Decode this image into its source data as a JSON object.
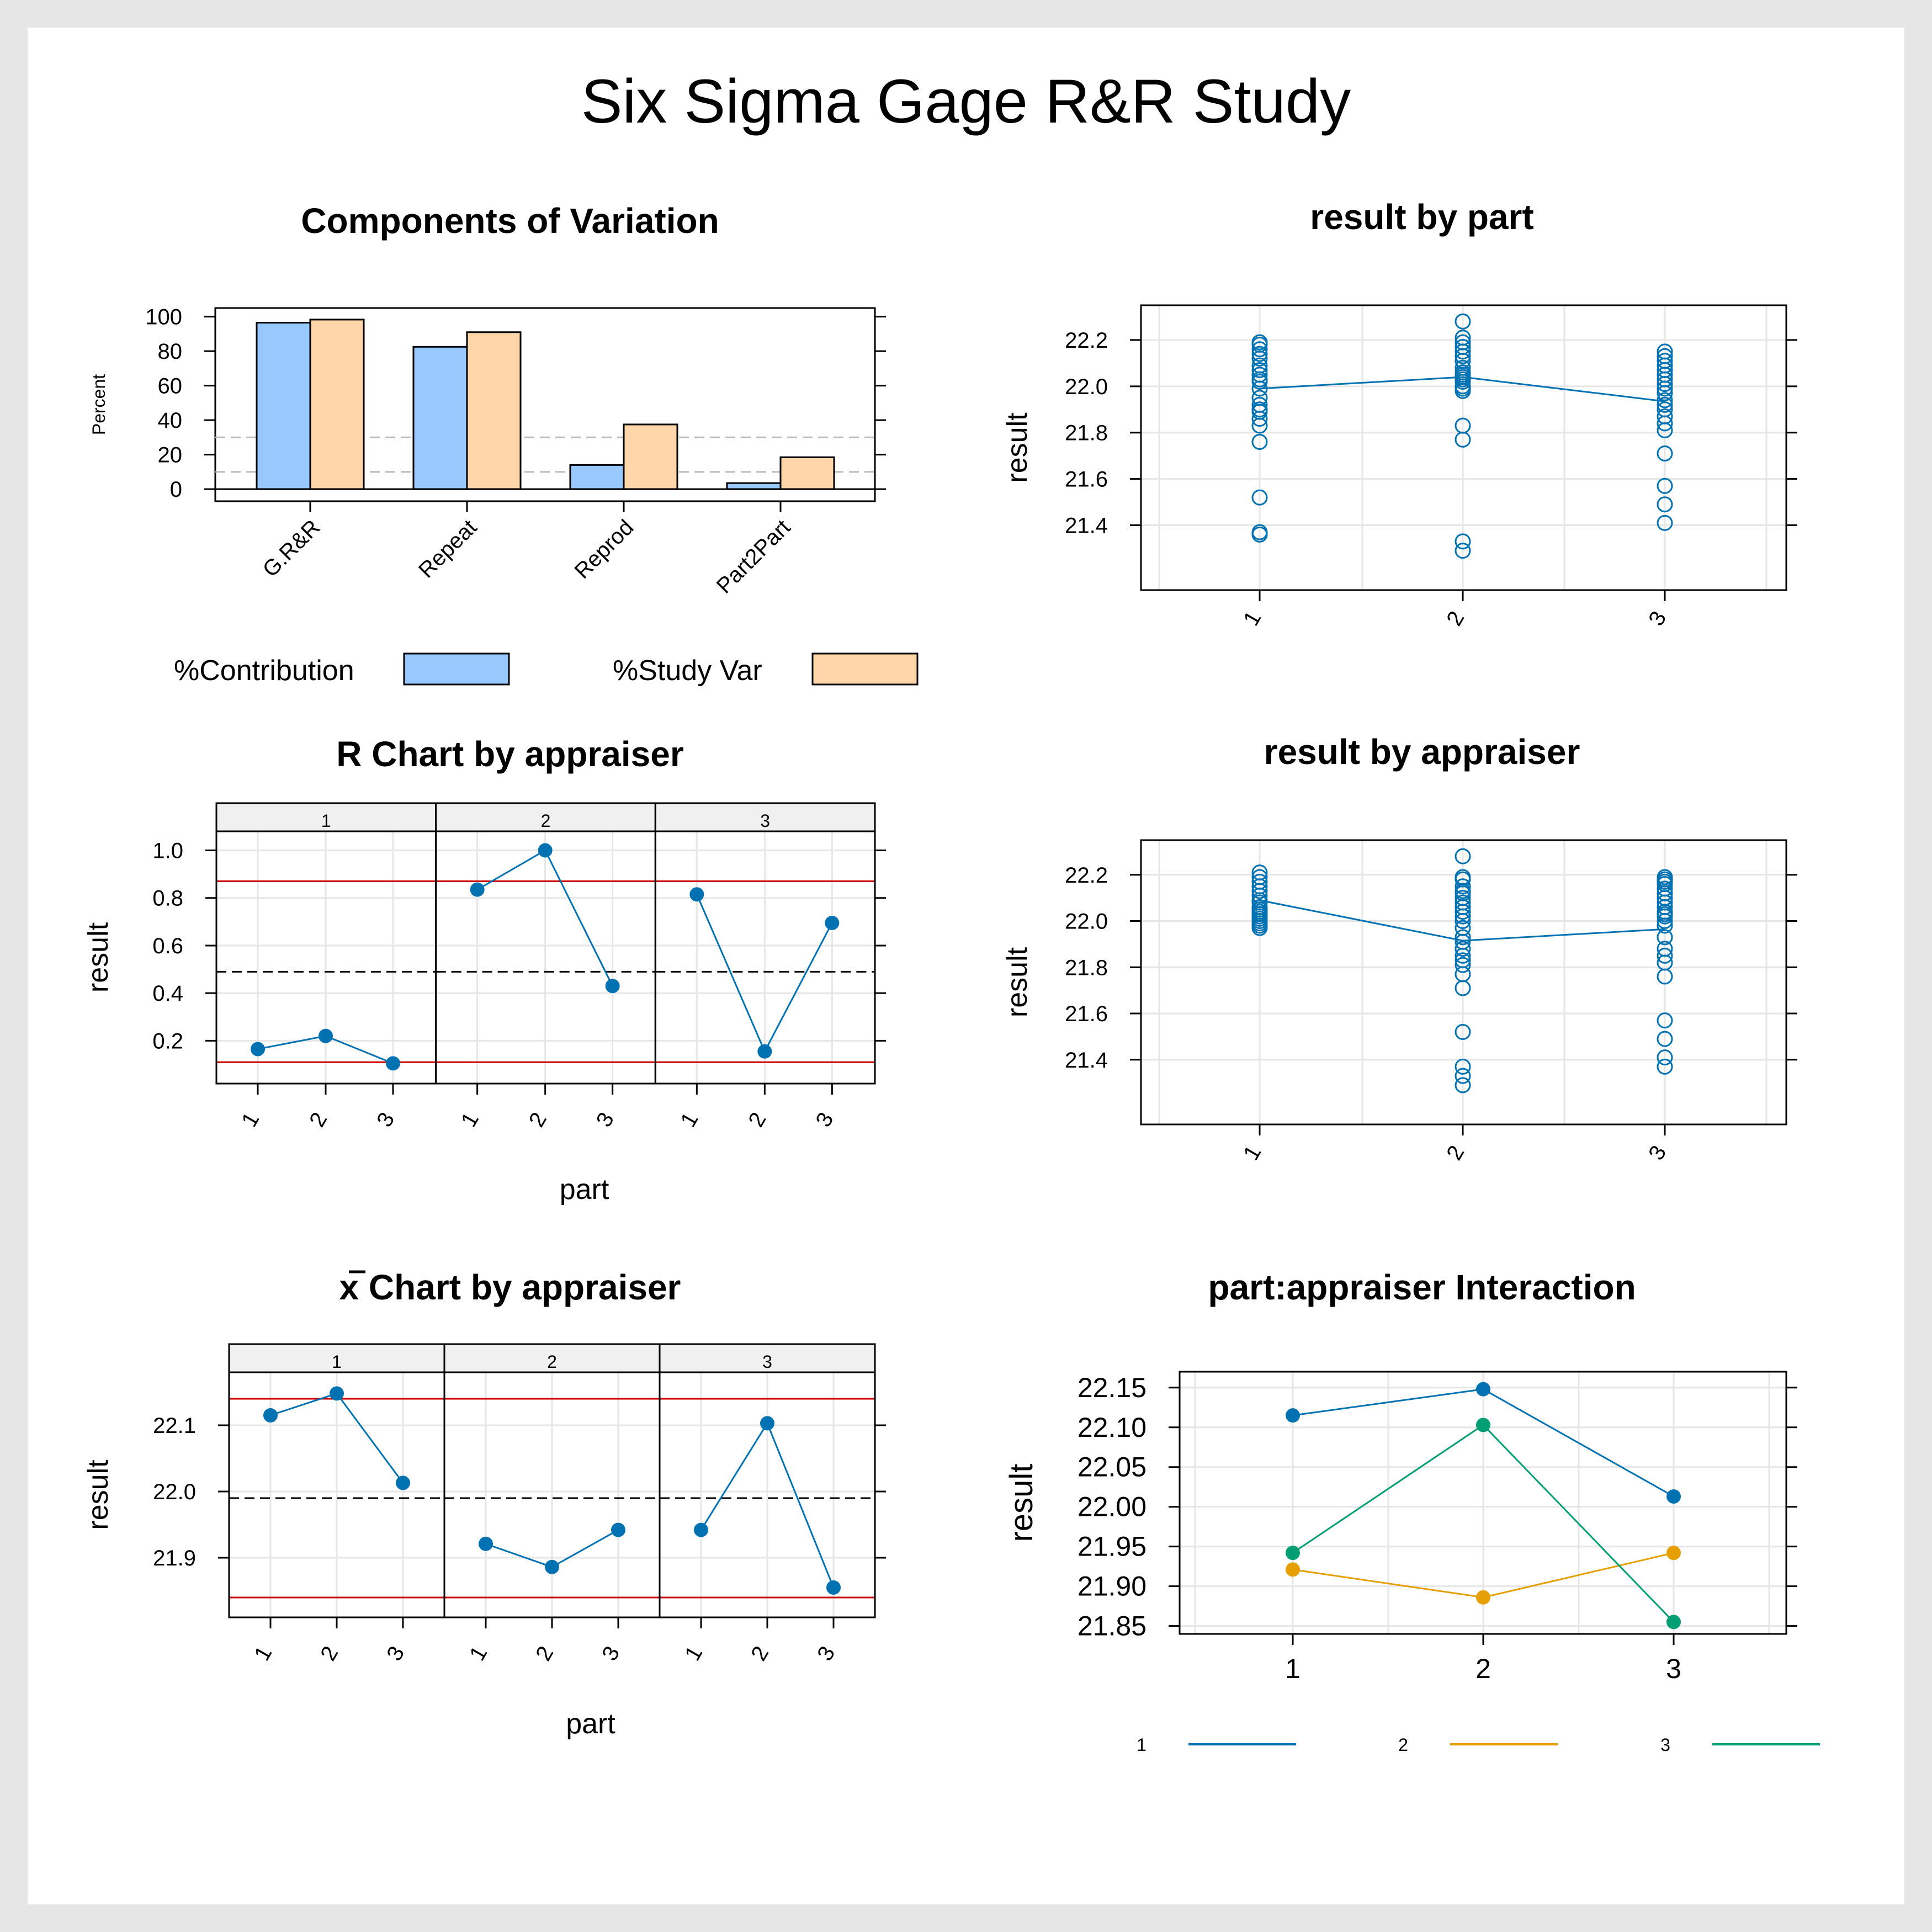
{
  "title": "Six Sigma Gage R&R Study",
  "colors": {
    "contribution": "#99c8ff",
    "study_var": "#ffd6aa",
    "series_blue": "#0072b2",
    "series_orange": "#e69f00",
    "series_green": "#009e73",
    "control_limit": "#cc0000",
    "center_line": "#000000",
    "grid": "#e6e6e6",
    "strip": "#f0f0f0",
    "ref_line": "#bbbbbb"
  },
  "chart_data": [
    {
      "id": "components",
      "type": "bar",
      "title": "Components of Variation",
      "ylabel": "Percent",
      "xlabel": "",
      "ylim": [
        -7,
        105
      ],
      "yticks": [
        "0",
        "20",
        "40",
        "60",
        "80",
        "100"
      ],
      "categories": [
        "G.R&R",
        "Repeat",
        "Reprod",
        "Part2Part"
      ],
      "series": [
        {
          "name": "%Contribution",
          "values": [
            96.5,
            82.5,
            14,
            3.5
          ]
        },
        {
          "name": "%Study Var",
          "values": [
            98.3,
            91,
            37.5,
            18.5
          ]
        }
      ],
      "reference_lines": [
        10,
        30
      ],
      "legend_position": "bottom"
    },
    {
      "id": "result_by_part",
      "type": "scatter",
      "title": "result by part",
      "ylabel": "result",
      "xlabel": "",
      "ylim": [
        21.12,
        22.35
      ],
      "yticks": [
        "21.4",
        "21.6",
        "21.8",
        "22.0",
        "22.2"
      ],
      "categories": [
        "1",
        "2",
        "3"
      ],
      "points": [
        [
          22.19,
          22.18,
          22.16,
          22.14,
          22.12,
          22.09,
          22.07,
          22.05,
          22.03,
          22.02,
          21.99,
          21.95,
          21.92,
          21.9,
          21.89,
          21.86,
          21.83,
          21.76,
          21.52,
          21.37,
          21.36
        ],
        [
          22.28,
          22.21,
          22.19,
          22.17,
          22.15,
          22.13,
          22.11,
          22.08,
          22.06,
          22.05,
          22.04,
          22.03,
          22.02,
          22.0,
          21.99,
          21.98,
          21.83,
          21.77,
          21.33,
          21.29
        ],
        [
          22.15,
          22.13,
          22.11,
          22.09,
          22.07,
          22.05,
          22.03,
          22.01,
          21.99,
          21.97,
          21.94,
          21.92,
          21.9,
          21.87,
          21.84,
          21.81,
          21.71,
          21.57,
          21.49,
          21.41
        ]
      ],
      "means": [
        21.99,
        22.04,
        21.935
      ]
    },
    {
      "id": "r_chart",
      "type": "line",
      "title": "R Chart by appraiser",
      "ylabel": "result",
      "xlabel": "part",
      "ylim": [
        0.02,
        1.08
      ],
      "yticks": [
        "0.2",
        "0.4",
        "0.6",
        "0.8",
        "1.0"
      ],
      "panels": [
        "1",
        "2",
        "3"
      ],
      "categories": [
        "1",
        "2",
        "3"
      ],
      "series": [
        {
          "values": [
            0.165,
            0.22,
            0.105
          ]
        },
        {
          "values": [
            0.835,
            1.0,
            0.43
          ]
        },
        {
          "values": [
            0.815,
            0.155,
            0.695
          ]
        }
      ],
      "ucl": 0.87,
      "center": 0.49,
      "lcl": 0.11
    },
    {
      "id": "result_by_appraiser",
      "type": "scatter",
      "title": "result by appraiser",
      "ylabel": "result",
      "xlabel": "",
      "ylim": [
        21.12,
        22.35
      ],
      "yticks": [
        "21.4",
        "21.6",
        "21.8",
        "22.0",
        "22.2"
      ],
      "categories": [
        "1",
        "2",
        "3"
      ],
      "points": [
        [
          22.21,
          22.19,
          22.17,
          22.15,
          22.13,
          22.11,
          22.09,
          22.08,
          22.06,
          22.05,
          22.04,
          22.03,
          22.02,
          22.01,
          22.0,
          21.99,
          21.98,
          21.97
        ],
        [
          22.28,
          22.19,
          22.18,
          22.15,
          22.13,
          22.12,
          22.1,
          22.08,
          22.06,
          22.04,
          22.02,
          22.0,
          21.97,
          21.93,
          21.91,
          21.88,
          21.85,
          21.83,
          21.81,
          21.77,
          21.71,
          21.52,
          21.37,
          21.33,
          21.29
        ],
        [
          22.19,
          22.18,
          22.17,
          22.16,
          22.14,
          22.12,
          22.1,
          22.08,
          22.06,
          22.04,
          22.03,
          22.02,
          22.0,
          21.98,
          21.93,
          21.88,
          21.85,
          21.82,
          21.76,
          21.57,
          21.49,
          21.41,
          21.37
        ]
      ],
      "means": [
        22.09,
        21.915,
        21.965
      ]
    },
    {
      "id": "xbar_chart",
      "type": "line",
      "title": "x Chart by appraiser",
      "ylabel": "result",
      "xlabel": "part",
      "ylim": [
        21.81,
        22.18
      ],
      "yticks": [
        "21.9",
        "22.0",
        "22.1"
      ],
      "panels": [
        "1",
        "2",
        "3"
      ],
      "categories": [
        "1",
        "2",
        "3"
      ],
      "series": [
        {
          "values": [
            22.115,
            22.148,
            22.013
          ]
        },
        {
          "values": [
            21.921,
            21.886,
            21.942
          ]
        },
        {
          "values": [
            21.942,
            22.103,
            21.855
          ]
        }
      ],
      "ucl": 22.14,
      "center": 21.99,
      "lcl": 21.84
    },
    {
      "id": "interaction",
      "type": "line",
      "title": "part:appraiser Interaction",
      "ylabel": "result",
      "xlabel": "",
      "ylim": [
        21.84,
        22.17
      ],
      "yticks": [
        "21.85",
        "21.90",
        "21.95",
        "22.00",
        "22.05",
        "22.10",
        "22.15"
      ],
      "categories": [
        "1",
        "2",
        "3"
      ],
      "series": [
        {
          "name": "1",
          "values": [
            22.115,
            22.148,
            22.013
          ]
        },
        {
          "name": "2",
          "values": [
            21.921,
            21.886,
            21.942
          ]
        },
        {
          "name": "3",
          "values": [
            21.942,
            22.103,
            21.855
          ]
        }
      ],
      "legend_position": "bottom"
    }
  ]
}
